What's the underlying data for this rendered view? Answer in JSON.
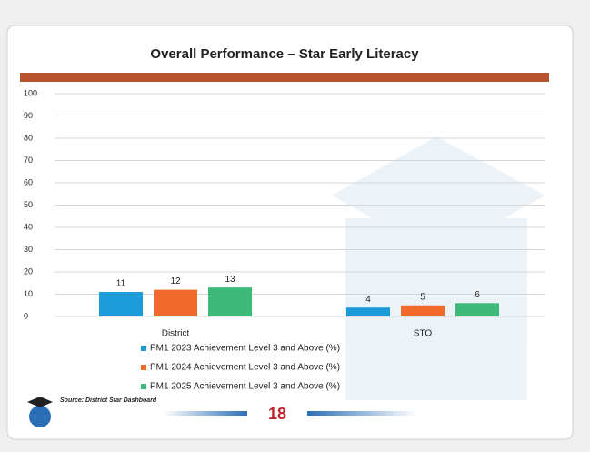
{
  "chart_data": {
    "type": "bar",
    "title": "Overall Performance – Star Early Literacy",
    "categories": [
      "District",
      "STO"
    ],
    "series": [
      {
        "name": "PM1 2023 Achievement Level 3 and Above (%)",
        "color": "#1b9bd7",
        "values": [
          11,
          4
        ]
      },
      {
        "name": "PM1 2024 Achievement Level 3 and Above (%)",
        "color": "#f26a2b",
        "values": [
          12,
          5
        ]
      },
      {
        "name": "PM1 2025 Achievement Level 3 and Above (%)",
        "color": "#3dba78",
        "values": [
          13,
          6
        ]
      }
    ],
    "ylim": [
      0,
      100
    ],
    "yticks": [
      0,
      10,
      20,
      30,
      40,
      50,
      60,
      70,
      80,
      90,
      100
    ],
    "grid": true
  },
  "footer": {
    "source": "Source: District Star Dashboard",
    "page_number": "18"
  }
}
